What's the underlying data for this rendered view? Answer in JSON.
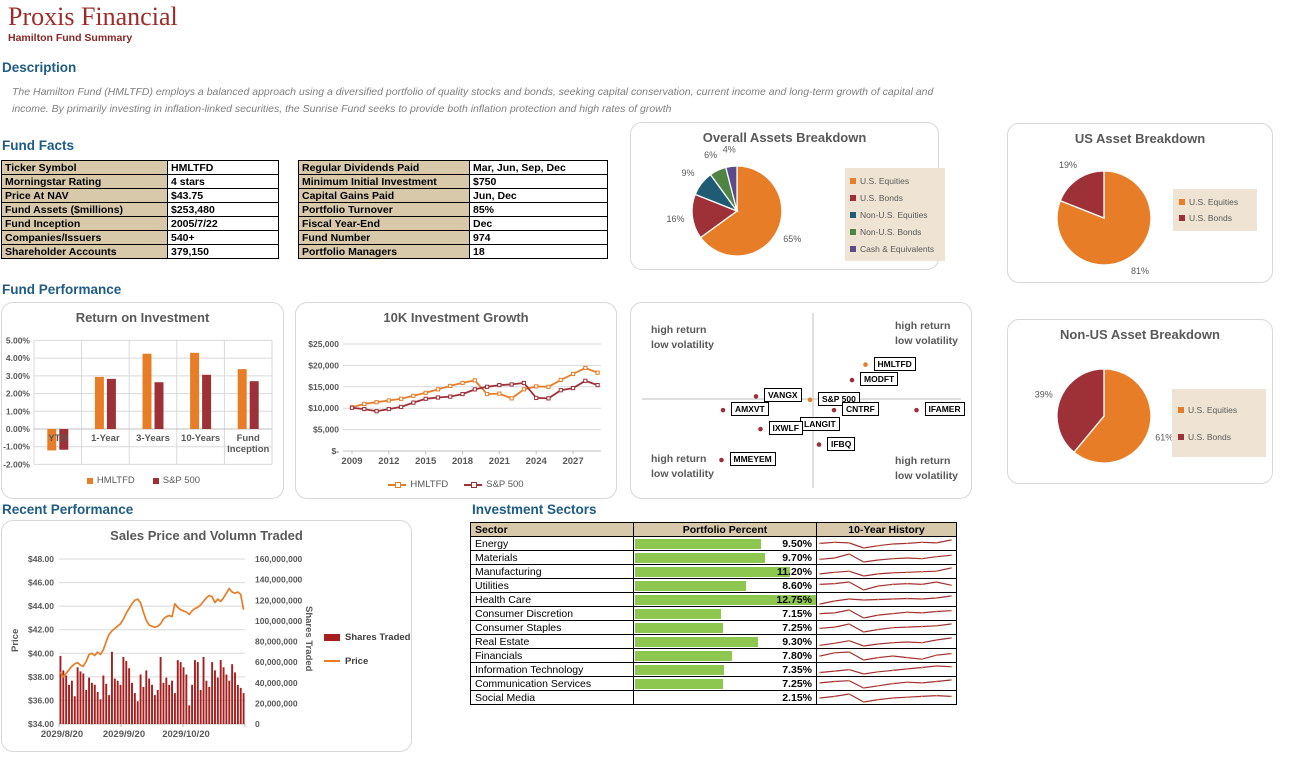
{
  "header": {
    "title": "Proxis Financial",
    "subtitle": "Hamilton Fund Summary"
  },
  "sections": {
    "description": "Description",
    "fund_facts": "Fund Facts",
    "fund_performance": "Fund Performance",
    "recent_performance": "Recent Performance",
    "investment_sectors": "Investment Sectors"
  },
  "description": {
    "line1": "The Hamilton Fund (HMLTFD) employs a  balanced approach using a diversified portfolio of quality stocks and bonds, seeking capital conservation, current income and long-term growth of capital and",
    "line2": "income. By primarily investing in inflation-linked securities, the Sunrise Fund seeks to provide both inflation protection and high rates of growth"
  },
  "fund_facts": {
    "left": [
      [
        "Ticker Symbol",
        "HMLTFD"
      ],
      [
        "Morningstar Rating",
        "4 stars"
      ],
      [
        "Price At NAV",
        "$43.75"
      ],
      [
        "Fund Assets ($millions)",
        "$253,480"
      ],
      [
        "Fund Inception",
        "2005/7/22"
      ],
      [
        "Companies/Issuers",
        "540+"
      ],
      [
        "Shareholder Accounts",
        "379,150"
      ]
    ],
    "right": [
      [
        "Regular Dividends Paid",
        "Mar, Jun, Sep, Dec"
      ],
      [
        "Minimum Initial Investment",
        "$750"
      ],
      [
        "Capital Gains Paid",
        "Jun, Dec"
      ],
      [
        "Portfolio Turnover",
        "85%"
      ],
      [
        "Fiscal Year-End",
        "Dec"
      ],
      [
        "Fund Number",
        "974"
      ],
      [
        "Portfolio Managers",
        "18"
      ]
    ]
  },
  "colors": {
    "orange": "#E87D27",
    "maroon": "#9E3038",
    "teal": "#1F5C73",
    "green": "#4E8542",
    "purple": "#5C4B8A",
    "bar_green": "#8DC750",
    "volume_red": "#A61E1E",
    "tan_header": "#D8C9AB",
    "tan_legend": "#EFE4D3",
    "heading_blue": "#1F5C85",
    "title_red": "#9E2B28",
    "text_gray": "#595959"
  },
  "chart_data": [
    {
      "id": "overall_assets",
      "type": "pie",
      "title": "Overall Assets Breakdown",
      "labels": [
        "U.S. Equities",
        "U.S. Bonds",
        "Non-U.S. Equities",
        "Non-U.S. Bonds",
        "Cash & Equivalents"
      ],
      "values": [
        65,
        16,
        9,
        6,
        4
      ],
      "colors": [
        "#E87D27",
        "#9E3038",
        "#1F5C73",
        "#4E8542",
        "#5C4B8A"
      ],
      "legend_position": "right"
    },
    {
      "id": "us_assets",
      "type": "pie",
      "title": "US Asset Breakdown",
      "labels": [
        "U.S. Equities",
        "U.S. Bonds"
      ],
      "values": [
        81,
        19
      ],
      "colors": [
        "#E87D27",
        "#9E3038"
      ],
      "legend_position": "right"
    },
    {
      "id": "nonus_assets",
      "type": "pie",
      "title": "Non-US Asset Breakdown",
      "labels": [
        "U.S. Equities",
        "U.S. Bonds"
      ],
      "values": [
        61,
        39
      ],
      "colors": [
        "#E87D27",
        "#9E3038"
      ],
      "legend_position": "right"
    },
    {
      "id": "return_on_investment",
      "type": "bar",
      "title": "Return on Investment",
      "categories": [
        "YTD",
        "1-Year",
        "3-Years",
        "10-Years",
        "Fund Inception"
      ],
      "series": [
        {
          "name": "HMLTFD",
          "color": "#E87D27",
          "values": [
            -1.21,
            2.94,
            4.25,
            4.3,
            3.38
          ]
        },
        {
          "name": "S&P 500",
          "color": "#9E3038",
          "values": [
            -1.17,
            2.83,
            2.64,
            3.06,
            2.7
          ]
        }
      ],
      "ylim": [
        -2,
        5
      ],
      "yticks": [
        "5.00%",
        "4.00%",
        "3.00%",
        "2.00%",
        "1.00%",
        "0.00%",
        "-1.00%",
        "-2.00%"
      ],
      "legend_position": "bottom",
      "grid": true
    },
    {
      "id": "10k_growth",
      "type": "line",
      "title": "10K Investment Growth",
      "x": [
        2009,
        2010,
        2011,
        2012,
        2013,
        2014,
        2015,
        2016,
        2017,
        2018,
        2019,
        2020,
        2021,
        2022,
        2023,
        2024,
        2025,
        2026,
        2027,
        2028,
        2029
      ],
      "xticks": [
        2009,
        2012,
        2015,
        2018,
        2021,
        2024,
        2027
      ],
      "yticks": [
        "$25,000",
        "$20,000",
        "$15,000",
        "$10,000",
        "$5,000",
        "$-"
      ],
      "ylim": [
        0,
        25000
      ],
      "series": [
        {
          "name": "HMLTFD",
          "color": "#E87D27",
          "values": [
            10200,
            11000,
            11400,
            11800,
            12200,
            12900,
            13600,
            14400,
            15200,
            15900,
            16500,
            13300,
            13400,
            12300,
            14400,
            15100,
            15000,
            16600,
            18000,
            19400,
            18300
          ]
        },
        {
          "name": "S&P 500",
          "color": "#9E3038",
          "values": [
            10100,
            9800,
            9300,
            9800,
            10300,
            11300,
            12200,
            12500,
            12700,
            13300,
            14400,
            15000,
            15400,
            15550,
            15900,
            12400,
            12300,
            14200,
            14700,
            16400,
            15400
          ]
        }
      ],
      "legend_position": "bottom",
      "grid": true
    },
    {
      "id": "risk_return_scatter",
      "type": "scatter",
      "title": "",
      "quadrants": [
        [
          "high return",
          "low volatility"
        ],
        [
          "high return",
          "low volatility"
        ],
        [
          "high return",
          "low volatility"
        ],
        [
          "high return",
          "low volatility"
        ]
      ],
      "points": [
        {
          "label": "HMLTFD",
          "x": 0.35,
          "y": 0.4,
          "color": "#E87D27"
        },
        {
          "label": "MODFT",
          "x": 0.26,
          "y": 0.22,
          "color": "#9E3038"
        },
        {
          "label": "VANGX",
          "x": -0.38,
          "y": 0.03,
          "color": "#9E3038"
        },
        {
          "label": "S&P 500",
          "x": -0.02,
          "y": -0.01,
          "color": "#E87D27"
        },
        {
          "label": "AMXVT",
          "x": -0.6,
          "y": -0.13,
          "color": "#9E3038"
        },
        {
          "label": "CNTRF",
          "x": 0.14,
          "y": -0.13,
          "color": "#9E3038"
        },
        {
          "label": "IFAMER",
          "x": 0.69,
          "y": -0.13,
          "color": "#9E3038"
        },
        {
          "label": "LANGIT",
          "x": -0.14,
          "y": -0.3,
          "color": "#9E3038"
        },
        {
          "label": "IXWLF",
          "x": -0.35,
          "y": -0.35,
          "color": "#9E3038"
        },
        {
          "label": "IFBQ",
          "x": 0.04,
          "y": -0.53,
          "color": "#9E3038"
        },
        {
          "label": "MMEYEM",
          "x": -0.61,
          "y": -0.71,
          "color": "#9E3038"
        }
      ]
    },
    {
      "id": "sales_price_volume",
      "type": "line+bar",
      "title": "Sales Price and Volumn Traded",
      "ylabel_left": "Price",
      "ylabel_right": "Shares Traded",
      "yticks_left": [
        "$48.00",
        "$46.00",
        "$44.00",
        "$42.00",
        "$40.00",
        "$38.00",
        "$36.00",
        "$34.00"
      ],
      "yticks_right": [
        "160,000,000",
        "140,000,000",
        "120,000,000",
        "100,000,000",
        "80,000,000",
        "60,000,000",
        "40,000,000",
        "20,000,000",
        "0"
      ],
      "ylim_left": [
        34,
        48
      ],
      "ylim_right": [
        0,
        160000000
      ],
      "xticks": [
        "2029/8/20",
        "2029/9/20",
        "2029/10/20"
      ],
      "series": [
        {
          "name": "Shares Traded",
          "type": "bar",
          "color": "#A61E1E",
          "unit": "millions",
          "values": [
            66,
            52,
            47,
            38,
            42,
            27,
            55,
            51,
            49,
            33,
            45,
            40,
            38,
            31,
            24,
            47,
            39,
            28,
            70,
            44,
            42,
            38,
            65,
            61,
            54,
            40,
            30,
            22,
            48,
            36,
            52,
            44,
            38,
            28,
            33,
            65,
            40,
            45,
            38,
            42,
            30,
            62,
            60,
            55,
            48,
            18,
            38,
            62,
            60,
            33,
            65,
            42,
            36,
            60,
            52,
            45,
            62,
            55,
            48,
            42,
            58,
            50,
            38,
            35,
            30
          ]
        },
        {
          "name": "Price",
          "type": "line",
          "color": "#E87D27",
          "values": [
            38.4,
            38.0,
            38.3,
            38.6,
            38.9,
            39.1,
            39.2,
            39.0,
            38.9,
            39.3,
            39.9,
            40.0,
            39.8,
            40.1,
            39.9,
            40.3,
            41.0,
            41.6,
            41.9,
            42.1,
            42.3,
            42.5,
            42.9,
            43.4,
            43.8,
            44.2,
            44.5,
            44.6,
            44.3,
            43.5,
            42.8,
            42.4,
            42.3,
            42.2,
            42.3,
            42.5,
            42.9,
            43.1,
            43.2,
            43.1,
            44.2,
            43.9,
            43.7,
            43.6,
            43.5,
            43.3,
            43.6,
            43.8,
            43.9,
            44.1,
            44.4,
            44.7,
            44.9,
            44.8,
            44.3,
            44.6,
            44.4,
            44.7,
            45.1,
            45.5,
            45.2,
            45.1,
            45.2,
            45.0,
            43.7
          ]
        }
      ],
      "legend_position": "right"
    }
  ],
  "sectors_table": {
    "headers": [
      "Sector",
      "Portfolio Percent",
      "10-Year History"
    ],
    "databar_color": "#8DC750",
    "rows": [
      {
        "sector": "Energy",
        "percent": 9.5,
        "percent_label": "9.50%",
        "history": [
          5,
          5.2,
          5.1,
          4.2,
          4.6,
          4.9,
          5.0,
          5.2,
          5.1,
          5.6
        ]
      },
      {
        "sector": "Materials",
        "percent": 9.7,
        "percent_label": "9.70%",
        "history": [
          4.8,
          5.0,
          5.6,
          4.4,
          4.7,
          4.9,
          5.0,
          4.9,
          5.2,
          5.4
        ]
      },
      {
        "sector": "Manufacturing",
        "percent": 11.2,
        "percent_label": "11.20%",
        "history": [
          4.5,
          4.8,
          5.0,
          4.1,
          4.5,
          4.7,
          4.8,
          4.9,
          5.0,
          5.6
        ]
      },
      {
        "sector": "Utilities",
        "percent": 8.6,
        "percent_label": "8.60%",
        "history": [
          5.0,
          5.1,
          5.3,
          4.3,
          4.8,
          5.0,
          5.1,
          5.0,
          5.3,
          4.9
        ]
      },
      {
        "sector": "Health Care",
        "percent": 12.75,
        "percent_label": "12.75%",
        "history": [
          4.2,
          4.8,
          5.2,
          5.0,
          5.1,
          5.2,
          5.3,
          5.2,
          5.4,
          5.8
        ]
      },
      {
        "sector": "Consumer Discretion",
        "percent": 7.15,
        "percent_label": "7.15%",
        "history": [
          4.9,
          5.0,
          5.4,
          4.3,
          4.7,
          4.9,
          5.1,
          5.0,
          5.2,
          5.3
        ]
      },
      {
        "sector": "Consumer Staples",
        "percent": 7.25,
        "percent_label": "7.25%",
        "history": [
          4.8,
          5.0,
          5.5,
          4.2,
          4.6,
          4.9,
          5.0,
          5.1,
          5.2,
          5.5
        ]
      },
      {
        "sector": "Real Estate",
        "percent": 9.3,
        "percent_label": "9.30%",
        "history": [
          4.6,
          4.9,
          5.3,
          4.5,
          4.8,
          5.0,
          5.1,
          5.0,
          5.4,
          5.7
        ]
      },
      {
        "sector": "Financials",
        "percent": 7.8,
        "percent_label": "7.80%",
        "history": [
          4.8,
          5.2,
          5.3,
          4.3,
          4.6,
          4.8,
          4.6,
          4.4,
          4.9,
          5.1
        ]
      },
      {
        "sector": "Information Technology",
        "percent": 7.35,
        "percent_label": "7.35%",
        "history": [
          4.6,
          4.8,
          5.0,
          4.4,
          4.7,
          4.9,
          5.1,
          5.3,
          5.5,
          5.4
        ]
      },
      {
        "sector": "Communication Services",
        "percent": 7.25,
        "percent_label": "7.25%",
        "history": [
          4.9,
          5.1,
          5.2,
          4.2,
          4.5,
          4.8,
          5.0,
          4.9,
          5.1,
          5.3
        ]
      },
      {
        "sector": "Social Media",
        "percent": 2.15,
        "percent_label": "2.15%",
        "history": [
          4.8,
          5.0,
          5.3,
          4.3,
          4.6,
          4.8,
          4.9,
          5.0,
          5.1,
          5.0
        ]
      }
    ]
  }
}
